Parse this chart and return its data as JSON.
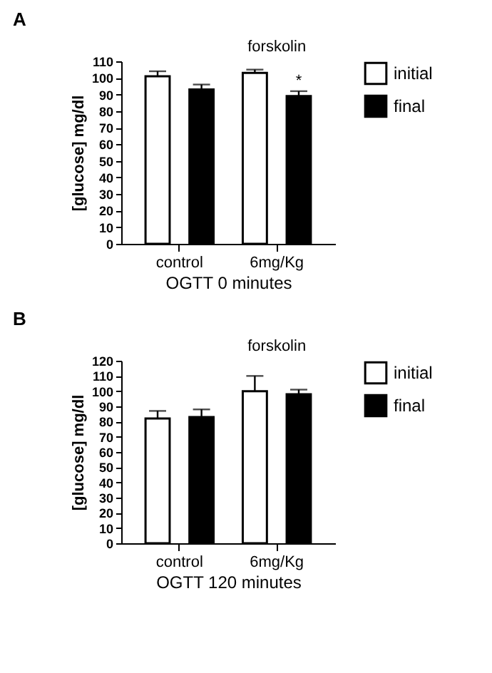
{
  "chart_data": [
    {
      "type": "bar",
      "title": "A",
      "xlabel": "OGTT 0 minutes",
      "ylabel": "[glucose] mg/dl",
      "categories": [
        "control",
        "6mg/Kg"
      ],
      "series": [
        {
          "name": "initial",
          "color": "#ffffff",
          "values": [
            101,
            103
          ],
          "errors": [
            [
              101,
              104
            ],
            [
              103,
              105
            ]
          ]
        },
        {
          "name": "final",
          "color": "#000000",
          "values": [
            93,
            89
          ],
          "errors": [
            [
              93,
              96
            ],
            [
              89,
              92
            ]
          ]
        }
      ],
      "ylim": [
        0,
        110
      ],
      "yticks": [
        0,
        10,
        20,
        30,
        40,
        50,
        60,
        70,
        80,
        90,
        100,
        110
      ],
      "grid": false,
      "legend": "top right",
      "annotations": [
        "forskolin",
        "*"
      ]
    },
    {
      "type": "bar",
      "title": "B",
      "xlabel": "OGTT 120 minutes",
      "ylabel": "[glucose] mg/dl",
      "categories": [
        "control",
        "6mg/Kg"
      ],
      "series": [
        {
          "name": "initial",
          "color": "#ffffff",
          "values": [
            82,
            100
          ],
          "errors": [
            [
              82,
              87
            ],
            [
              100,
              110
            ]
          ]
        },
        {
          "name": "final",
          "color": "#000000",
          "values": [
            83,
            98
          ],
          "errors": [
            [
              83,
              88
            ],
            [
              98,
              101
            ]
          ]
        }
      ],
      "ylim": [
        0,
        120
      ],
      "yticks": [
        0,
        10,
        20,
        30,
        40,
        50,
        60,
        70,
        80,
        90,
        100,
        110,
        120
      ],
      "grid": false,
      "legend": "top right",
      "annotations": [
        "forskolin"
      ]
    }
  ]
}
